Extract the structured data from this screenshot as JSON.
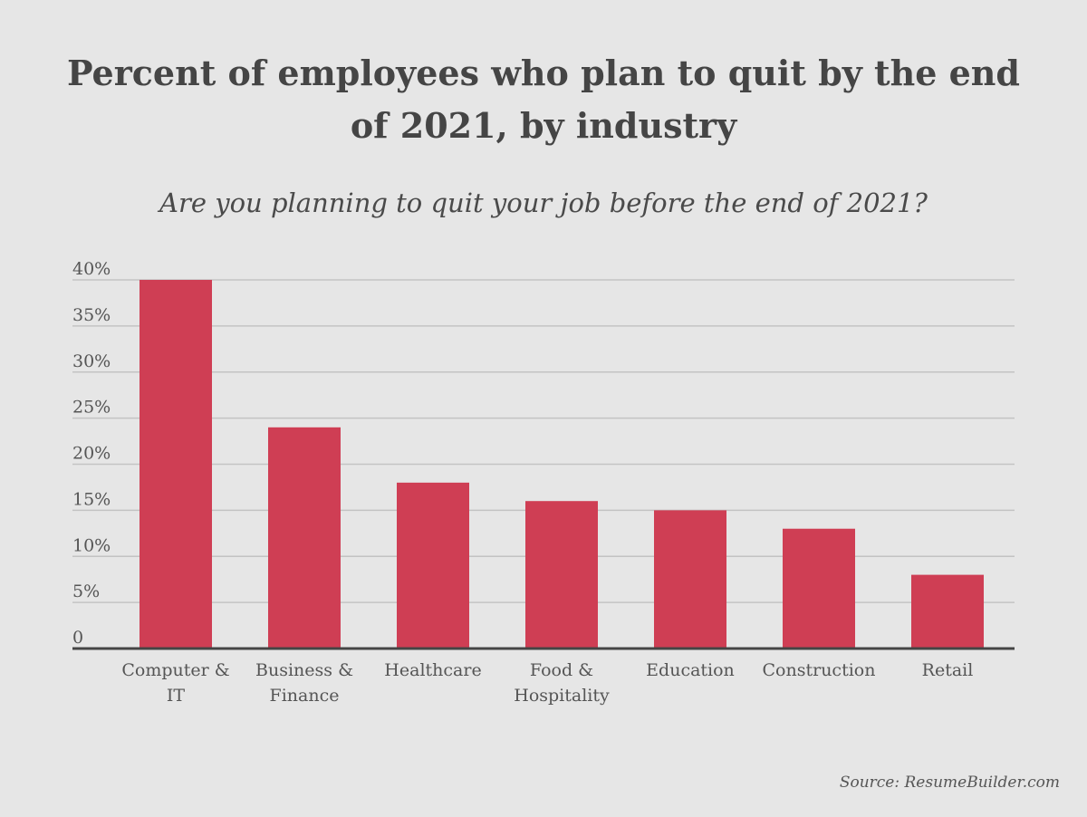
{
  "title": "Percent of employees who plan to quit by the end of 2021, by industry",
  "subtitle": "Are you planning to quit your job before the end of 2021?",
  "source": "Source: ResumeBuilder.com",
  "colors": {
    "bar": "#cf3e54",
    "grid": "#c3c3c3",
    "axis": "#454545",
    "background": "#e6e6e6"
  },
  "chart_data": {
    "type": "bar",
    "categories": [
      "Computer & IT",
      "Business & Finance",
      "Healthcare",
      "Food & Hospitality",
      "Education",
      "Construction",
      "Retail"
    ],
    "category_lines": [
      [
        "Computer &",
        "IT"
      ],
      [
        "Business &",
        "Finance"
      ],
      [
        "Healthcare"
      ],
      [
        "Food &",
        "Hospitality"
      ],
      [
        "Education"
      ],
      [
        "Construction"
      ],
      [
        "Retail"
      ]
    ],
    "values": [
      40,
      24,
      18,
      16,
      15,
      13,
      8
    ],
    "unit": "%",
    "ylim": [
      0,
      40
    ],
    "yticks": [
      0,
      5,
      10,
      15,
      20,
      25,
      30,
      35,
      40
    ],
    "ytick_labels": [
      "0",
      "5%",
      "10%",
      "15%",
      "20%",
      "25%",
      "30%",
      "35%",
      "40%"
    ],
    "xlabel": "",
    "ylabel": "",
    "grid": true,
    "legend": "none"
  }
}
